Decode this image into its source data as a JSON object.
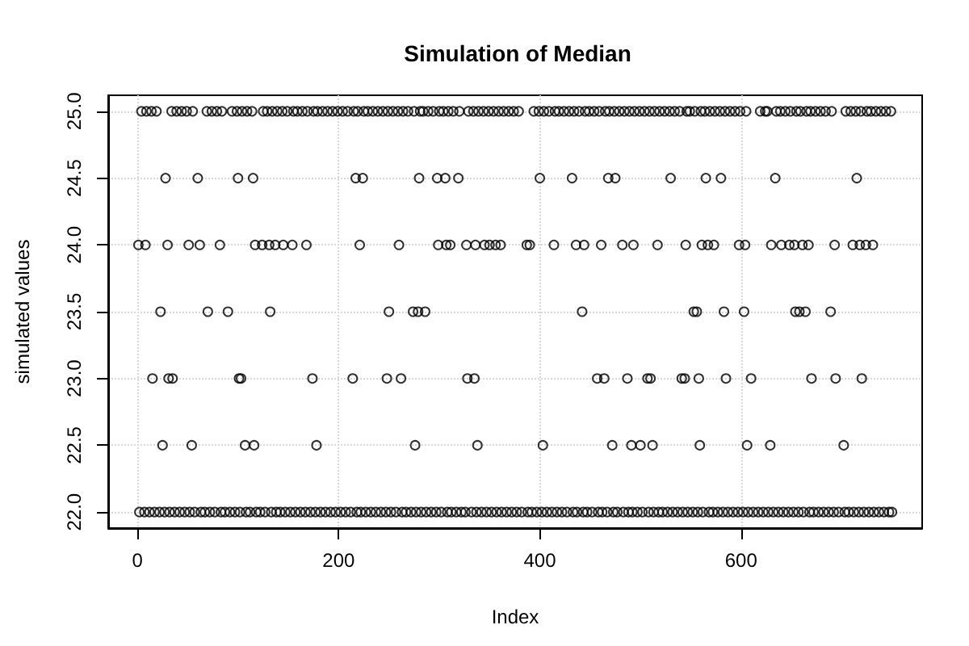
{
  "chart_data": {
    "type": "scatter",
    "title": "Simulation of Median",
    "xlabel": "Index",
    "ylabel": "simulated values",
    "xlim": [
      -29,
      780
    ],
    "xticks": [
      0,
      200,
      400,
      600
    ],
    "ylim": [
      21.88,
      25.12
    ],
    "yticks": [
      {
        "value": 22,
        "label": "22.0"
      },
      22.5,
      {
        "value": 23,
        "label": "23.0"
      },
      23.5,
      {
        "value": 24,
        "label": "24.0"
      },
      24.5,
      {
        "value": 25,
        "label": "25.0"
      }
    ],
    "grid": true,
    "marker": "circle",
    "color": "#000000",
    "x": [
      2,
      7,
      12,
      17,
      22,
      27,
      32,
      37,
      42,
      47,
      52,
      57,
      63,
      67,
      72,
      77,
      83,
      87,
      92,
      97,
      102,
      108,
      112,
      118,
      122,
      127,
      133,
      138,
      142,
      147,
      152,
      157,
      162,
      167,
      172,
      177,
      182,
      187,
      192,
      197,
      202,
      207,
      212,
      218,
      222,
      227,
      232,
      237,
      242,
      247,
      252,
      257,
      263,
      267,
      272,
      277,
      282,
      287,
      292,
      297,
      302,
      308,
      312,
      317,
      322,
      326,
      332,
      337,
      342,
      347,
      352,
      357,
      362,
      367,
      372,
      377,
      382,
      388,
      392,
      397,
      402,
      407,
      412,
      417,
      422,
      427,
      433,
      437,
      443,
      447,
      452,
      458,
      462,
      467,
      473,
      477,
      483,
      488,
      492,
      497,
      502,
      508,
      513,
      518,
      522,
      527,
      532,
      537,
      542,
      547,
      552,
      557,
      562,
      568,
      572,
      577,
      582,
      587,
      592,
      597,
      602,
      607,
      612,
      617,
      622,
      627,
      632,
      637,
      642,
      647,
      652,
      657,
      662,
      668,
      672,
      677,
      682,
      687,
      692,
      697,
      703,
      707,
      712,
      717,
      722,
      727,
      732,
      737,
      742,
      747,
      750,
      4,
      9,
      14,
      19,
      34,
      39,
      44,
      49,
      55,
      69,
      74,
      79,
      84,
      94,
      99,
      104,
      109,
      114,
      125,
      129,
      134,
      139,
      144,
      149,
      155,
      159,
      164,
      169,
      175,
      179,
      184,
      189,
      194,
      199,
      204,
      209,
      215,
      219,
      225,
      229,
      234,
      239,
      244,
      249,
      254,
      259,
      264,
      269,
      275,
      281,
      284,
      289,
      294,
      300,
      304,
      309,
      314,
      320,
      329,
      334,
      339,
      344,
      349,
      354,
      359,
      364,
      369,
      374,
      379,
      394,
      399,
      404,
      409,
      415,
      419,
      424,
      429,
      434,
      439,
      445,
      449,
      454,
      459,
      465,
      469,
      474,
      479,
      484,
      489,
      494,
      499,
      504,
      509,
      514,
      519,
      524,
      529,
      534,
      539,
      546,
      549,
      554,
      560,
      564,
      569,
      574,
      579,
      584,
      589,
      594,
      599,
      605,
      619,
      624,
      626,
      635,
      639,
      644,
      649,
      655,
      659,
      665,
      669,
      674,
      679,
      684,
      690,
      704,
      709,
      714,
      719,
      725,
      729,
      734,
      739,
      744,
      749,
      28,
      60,
      100,
      115,
      217,
      224,
      280,
      298,
      306,
      319,
      400,
      432,
      468,
      475,
      530,
      565,
      580,
      634,
      715,
      1,
      8,
      30,
      51,
      62,
      82,
      117,
      124,
      131,
      137,
      145,
      154,
      168,
      221,
      260,
      299,
      307,
      311,
      327,
      336,
      345,
      350,
      356,
      361,
      387,
      390,
      414,
      436,
      444,
      461,
      482,
      493,
      517,
      545,
      561,
      567,
      573,
      598,
      604,
      630,
      640,
      648,
      653,
      661,
      667,
      693,
      711,
      718,
      724,
      731,
      23,
      70,
      90,
      132,
      250,
      274,
      279,
      286,
      442,
      553,
      556,
      583,
      603,
      654,
      658,
      664,
      689,
      15,
      31,
      35,
      101,
      103,
      174,
      214,
      248,
      262,
      328,
      335,
      457,
      464,
      487,
      507,
      510,
      541,
      544,
      558,
      585,
      610,
      670,
      694,
      720,
      25,
      54,
      107,
      116,
      178,
      276,
      338,
      403,
      472,
      491,
      500,
      512,
      559,
      606,
      629,
      702
    ],
    "values": [
      22,
      22,
      22,
      22,
      22,
      22,
      22,
      22,
      22,
      22,
      22,
      22,
      22,
      22,
      22,
      22,
      22,
      22,
      22,
      22,
      22,
      22,
      22,
      22,
      22,
      22,
      22,
      22,
      22,
      22,
      22,
      22,
      22,
      22,
      22,
      22,
      22,
      22,
      22,
      22,
      22,
      22,
      22,
      22,
      22,
      22,
      22,
      22,
      22,
      22,
      22,
      22,
      22,
      22,
      22,
      22,
      22,
      22,
      22,
      22,
      22,
      22,
      22,
      22,
      22,
      22,
      22,
      22,
      22,
      22,
      22,
      22,
      22,
      22,
      22,
      22,
      22,
      22,
      22,
      22,
      22,
      22,
      22,
      22,
      22,
      22,
      22,
      22,
      22,
      22,
      22,
      22,
      22,
      22,
      22,
      22,
      22,
      22,
      22,
      22,
      22,
      22,
      22,
      22,
      22,
      22,
      22,
      22,
      22,
      22,
      22,
      22,
      22,
      22,
      22,
      22,
      22,
      22,
      22,
      22,
      22,
      22,
      22,
      22,
      22,
      22,
      22,
      22,
      22,
      22,
      22,
      22,
      22,
      22,
      22,
      22,
      22,
      22,
      22,
      22,
      22,
      22,
      22,
      22,
      22,
      22,
      22,
      22,
      22,
      22,
      22,
      25,
      25,
      25,
      25,
      25,
      25,
      25,
      25,
      25,
      25,
      25,
      25,
      25,
      25,
      25,
      25,
      25,
      25,
      25,
      25,
      25,
      25,
      25,
      25,
      25,
      25,
      25,
      25,
      25,
      25,
      25,
      25,
      25,
      25,
      25,
      25,
      25,
      25,
      25,
      25,
      25,
      25,
      25,
      25,
      25,
      25,
      25,
      25,
      25,
      25,
      25,
      25,
      25,
      25,
      25,
      25,
      25,
      25,
      25,
      25,
      25,
      25,
      25,
      25,
      25,
      25,
      25,
      25,
      25,
      25,
      25,
      25,
      25,
      25,
      25,
      25,
      25,
      25,
      25,
      25,
      25,
      25,
      25,
      25,
      25,
      25,
      25,
      25,
      25,
      25,
      25,
      25,
      25,
      25,
      25,
      25,
      25,
      25,
      25,
      25,
      25,
      25,
      25,
      25,
      25,
      25,
      25,
      25,
      25,
      25,
      25,
      25,
      25,
      25,
      25,
      25,
      25,
      25,
      25,
      25,
      25,
      25,
      25,
      25,
      25,
      25,
      25,
      25,
      25,
      25,
      25,
      25,
      25,
      25,
      25,
      25,
      25,
      24.5,
      24.5,
      24.5,
      24.5,
      24.5,
      24.5,
      24.5,
      24.5,
      24.5,
      24.5,
      24.5,
      24.5,
      24.5,
      24.5,
      24.5,
      24.5,
      24.5,
      24.5,
      24.5,
      24,
      24,
      24,
      24,
      24,
      24,
      24,
      24,
      24,
      24,
      24,
      24,
      24,
      24,
      24,
      24,
      24,
      24,
      24,
      24,
      24,
      24,
      24,
      24,
      24,
      24,
      24,
      24,
      24,
      24,
      24,
      24,
      24,
      24,
      24,
      24,
      24,
      24,
      24,
      24,
      24,
      24,
      24,
      24,
      24,
      24,
      24,
      24,
      24,
      24,
      23.5,
      23.5,
      23.5,
      23.5,
      23.5,
      23.5,
      23.5,
      23.5,
      23.5,
      23.5,
      23.5,
      23.5,
      23.5,
      23.5,
      23.5,
      23.5,
      23.5,
      23,
      23,
      23,
      23,
      23,
      23,
      23,
      23,
      23,
      23,
      23,
      23,
      23,
      23,
      23,
      23,
      23,
      23,
      23,
      23,
      23,
      23,
      23,
      23,
      22.5,
      22.5,
      22.5,
      22.5,
      22.5,
      22.5,
      22.5,
      22.5,
      22.5,
      22.5,
      22.5,
      22.5,
      22.5,
      22.5,
      22.5,
      22.5
    ]
  }
}
